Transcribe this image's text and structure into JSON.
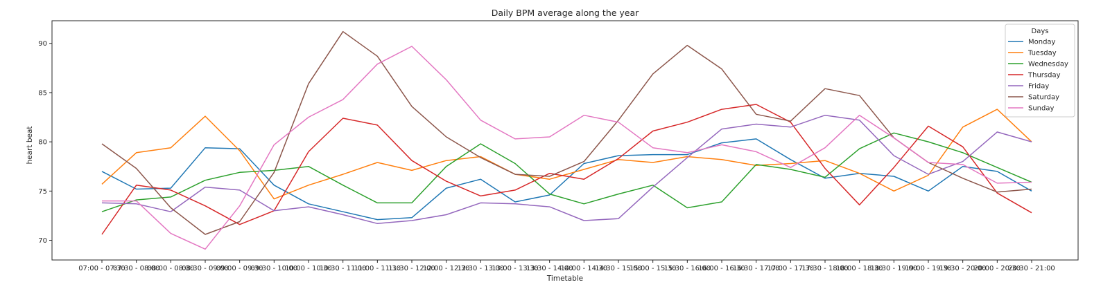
{
  "chart_data": {
    "type": "line",
    "title": "Daily BPM average along the year",
    "xlabel": "Timetable",
    "ylabel": "heart beat",
    "ylim": [
      68.0,
      92.3
    ],
    "yticks": [
      70,
      75,
      80,
      85,
      90
    ],
    "grid": false,
    "legend": {
      "title": "Days",
      "placement": "top-right"
    },
    "categories": [
      "07:00 - 07:30",
      "07:30 - 08:00",
      "08:00 - 08:30",
      "08:30 - 09:00",
      "09:00 - 09:30",
      "09:30 - 10:00",
      "10:00 - 10:30",
      "10:30 - 11:00",
      "11:00 - 11:30",
      "11:30 - 12:00",
      "12:00 - 12:30",
      "12:30 - 13:00",
      "13:00 - 13:30",
      "13:30 - 14:00",
      "14:00 - 14:30",
      "14:30 - 15:00",
      "15:00 - 15:30",
      "15:30 - 16:00",
      "16:00 - 16:30",
      "16:30 - 17:00",
      "17:00 - 17:30",
      "17:30 - 18:00",
      "18:00 - 18:30",
      "18:30 - 19:00",
      "19:00 - 19:30",
      "19:30 - 20:00",
      "20:00 - 20:30",
      "20:30 - 21:00"
    ],
    "series": [
      {
        "name": "Monday",
        "color": "#1f77b4",
        "values": [
          77.0,
          75.2,
          75.3,
          79.4,
          79.3,
          75.6,
          73.7,
          72.9,
          72.1,
          72.3,
          75.3,
          76.2,
          73.9,
          74.6,
          77.8,
          78.6,
          78.7,
          78.7,
          79.9,
          80.3,
          78.2,
          76.3,
          76.8,
          76.5,
          75.0,
          77.5,
          77.0,
          75.0
        ]
      },
      {
        "name": "Tuesday",
        "color": "#ff7f0e",
        "values": [
          75.7,
          78.9,
          79.4,
          82.6,
          79.1,
          74.2,
          75.6,
          76.7,
          77.9,
          77.1,
          78.1,
          78.5,
          76.7,
          76.2,
          77.2,
          78.2,
          77.9,
          78.5,
          78.2,
          77.6,
          77.8,
          78.1,
          76.8,
          75.0,
          76.6,
          81.5,
          83.3,
          80.0
        ]
      },
      {
        "name": "Wednesday",
        "color": "#2ca02c",
        "values": [
          72.9,
          74.1,
          74.4,
          76.1,
          76.9,
          77.1,
          77.5,
          75.6,
          73.8,
          73.8,
          77.5,
          79.8,
          77.8,
          74.7,
          73.7,
          74.7,
          75.6,
          73.3,
          73.9,
          77.7,
          77.2,
          76.4,
          79.3,
          80.9,
          80.0,
          78.9,
          77.4,
          75.9
        ]
      },
      {
        "name": "Thursday",
        "color": "#d62728",
        "values": [
          70.6,
          75.6,
          75.1,
          73.5,
          71.6,
          73.0,
          79.0,
          82.4,
          81.7,
          78.1,
          76.0,
          74.5,
          75.1,
          76.8,
          76.2,
          78.3,
          81.1,
          82.0,
          83.3,
          83.8,
          82.0,
          77.3,
          73.6,
          77.4,
          81.6,
          79.5,
          74.8,
          72.8
        ]
      },
      {
        "name": "Friday",
        "color": "#9467bd",
        "values": [
          73.8,
          73.7,
          72.9,
          75.4,
          75.1,
          73.0,
          73.4,
          72.6,
          71.7,
          72.0,
          72.6,
          73.8,
          73.7,
          73.4,
          72.0,
          72.2,
          75.4,
          78.4,
          81.3,
          81.8,
          81.5,
          82.7,
          82.2,
          78.6,
          76.7,
          78.0,
          81.0,
          80.0
        ]
      },
      {
        "name": "Saturday",
        "color": "#8c564b",
        "values": [
          79.8,
          77.3,
          73.3,
          70.6,
          71.9,
          76.9,
          85.9,
          91.2,
          88.7,
          83.6,
          80.5,
          78.4,
          76.7,
          76.5,
          78.0,
          82.2,
          86.9,
          89.8,
          87.4,
          82.8,
          82.1,
          85.4,
          84.7,
          80.4,
          77.9,
          76.3,
          74.9,
          75.2
        ]
      },
      {
        "name": "Sunday",
        "color": "#e377c2",
        "values": [
          74.0,
          74.0,
          70.7,
          69.1,
          73.5,
          79.7,
          82.5,
          84.3,
          87.9,
          89.7,
          86.3,
          82.2,
          80.3,
          80.5,
          82.7,
          82.0,
          79.4,
          78.9,
          79.7,
          79.0,
          77.4,
          79.4,
          82.7,
          80.4,
          77.9,
          77.7,
          75.8,
          75.9
        ]
      }
    ]
  }
}
